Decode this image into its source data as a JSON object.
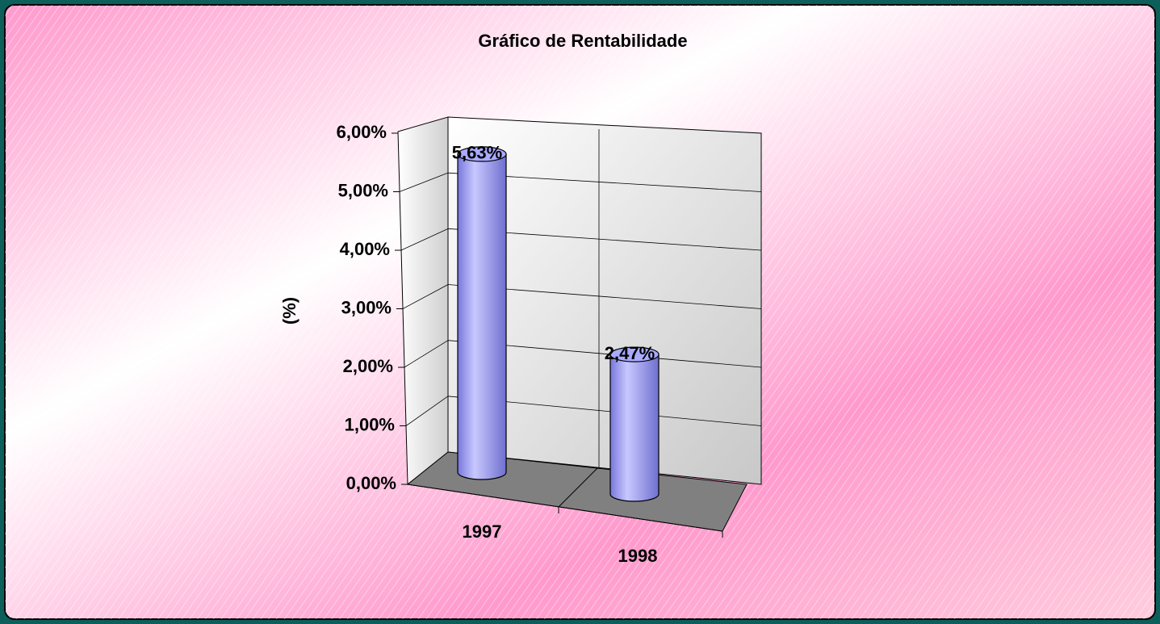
{
  "chart_data": {
    "type": "bar",
    "title": "Gráfico de Rentabilidade",
    "y_label": "(%)",
    "categories": [
      "1997",
      "1998"
    ],
    "values": [
      5.63,
      2.47
    ],
    "value_labels": [
      "5,63%",
      "2,47%"
    ],
    "color": "#9999ff",
    "ylim": [
      0,
      6
    ],
    "yticks": [
      {
        "value": 0,
        "label": "0,00%"
      },
      {
        "value": 1,
        "label": "1,00%"
      },
      {
        "value": 2,
        "label": "2,00%"
      },
      {
        "value": 3,
        "label": "3,00%"
      },
      {
        "value": 4,
        "label": "4,00%"
      },
      {
        "value": 5,
        "label": "5,00%"
      },
      {
        "value": 6,
        "label": "6,00%"
      }
    ],
    "grid": true
  }
}
